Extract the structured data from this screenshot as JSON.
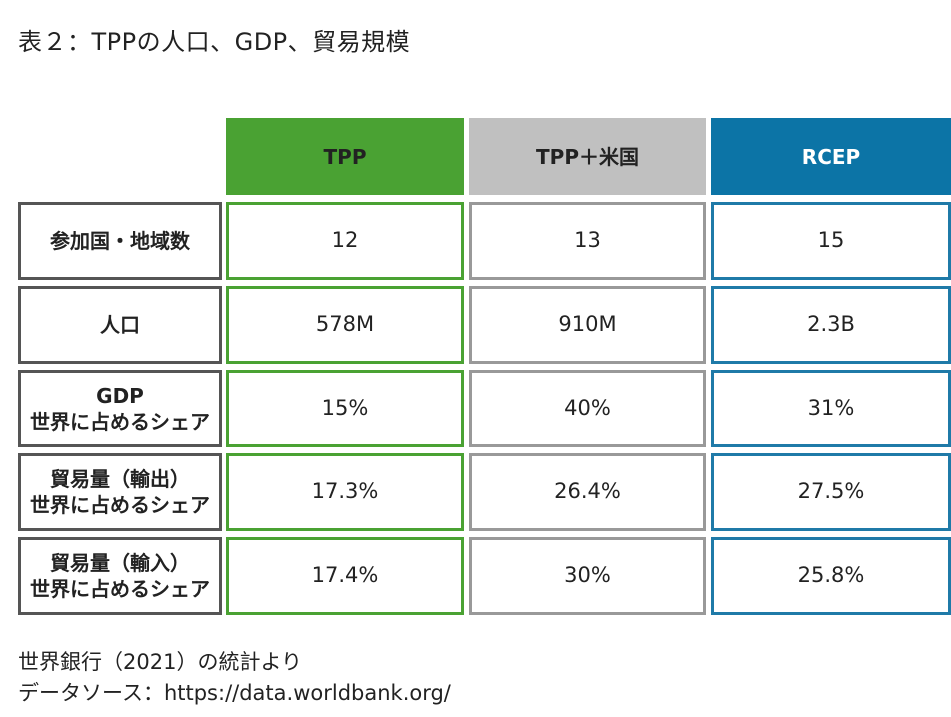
{
  "title": "表２：TPPの人口、GDP、貿易規模",
  "colors": {
    "tpp": "#4aa233",
    "us": "#c0c0c0",
    "rcep": "#0c74a6"
  },
  "table": {
    "headers": [
      "TPP",
      "TPP＋米国",
      "RCEP"
    ],
    "rows": [
      {
        "label_line1": "参加国・地域数",
        "label_line2": "",
        "values": [
          "12",
          "13",
          "15"
        ]
      },
      {
        "label_line1": "人口",
        "label_line2": "",
        "values": [
          "578M",
          "910M",
          "2.3B"
        ]
      },
      {
        "label_line1": "GDP",
        "label_line2": "世界に占めるシェア",
        "values": [
          "15%",
          "40%",
          "31%"
        ]
      },
      {
        "label_line1": "貿易量（輸出）",
        "label_line2": "世界に占めるシェア",
        "values": [
          "17.3%",
          "26.4%",
          "27.5%"
        ]
      },
      {
        "label_line1": "貿易量（輸入）",
        "label_line2": "世界に占めるシェア",
        "values": [
          "17.4%",
          "30%",
          "25.8%"
        ]
      }
    ]
  },
  "footer": {
    "source": "世界銀行（2021）の統計より",
    "data_source": "データソース：https://data.worldbank.org/"
  }
}
